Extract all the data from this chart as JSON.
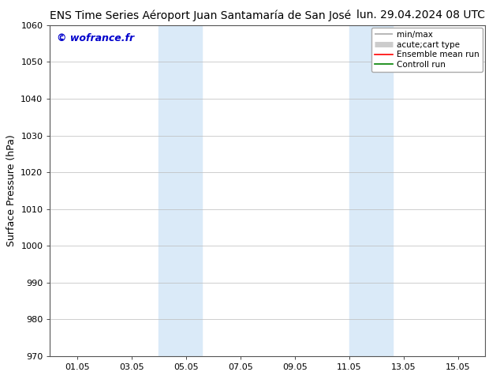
{
  "title_left": "ENS Time Series Aéroport Juan Santamaría de San José",
  "title_right": "lun. 29.04.2024 08 UTC",
  "ylabel": "Surface Pressure (hPa)",
  "ylim": [
    970,
    1060
  ],
  "yticks": [
    970,
    980,
    990,
    1000,
    1010,
    1020,
    1030,
    1040,
    1050,
    1060
  ],
  "xlim_start": 0,
  "xlim_end": 16,
  "xtick_positions": [
    1,
    3,
    5,
    7,
    9,
    11,
    13,
    15
  ],
  "xtick_labels": [
    "01.05",
    "03.05",
    "05.05",
    "07.05",
    "09.05",
    "11.05",
    "13.05",
    "15.05"
  ],
  "watermark": "© wofrance.fr",
  "watermark_color": "#0000cc",
  "shaded_bands": [
    {
      "x_start": 4.0,
      "x_end": 5.6
    },
    {
      "x_start": 11.0,
      "x_end": 12.6
    }
  ],
  "shaded_color": "#daeaf8",
  "bg_color": "#ffffff",
  "grid_color": "#bbbbbb",
  "legend_labels": [
    "min/max",
    "acute;cart type",
    "Ensemble mean run",
    "Controll run"
  ],
  "legend_line_colors": [
    "#aaaaaa",
    "#cccccc",
    "#ff0000",
    "#008000"
  ],
  "title_fontsize": 10,
  "axis_label_fontsize": 9,
  "tick_fontsize": 8,
  "watermark_fontsize": 9,
  "legend_fontsize": 7.5
}
